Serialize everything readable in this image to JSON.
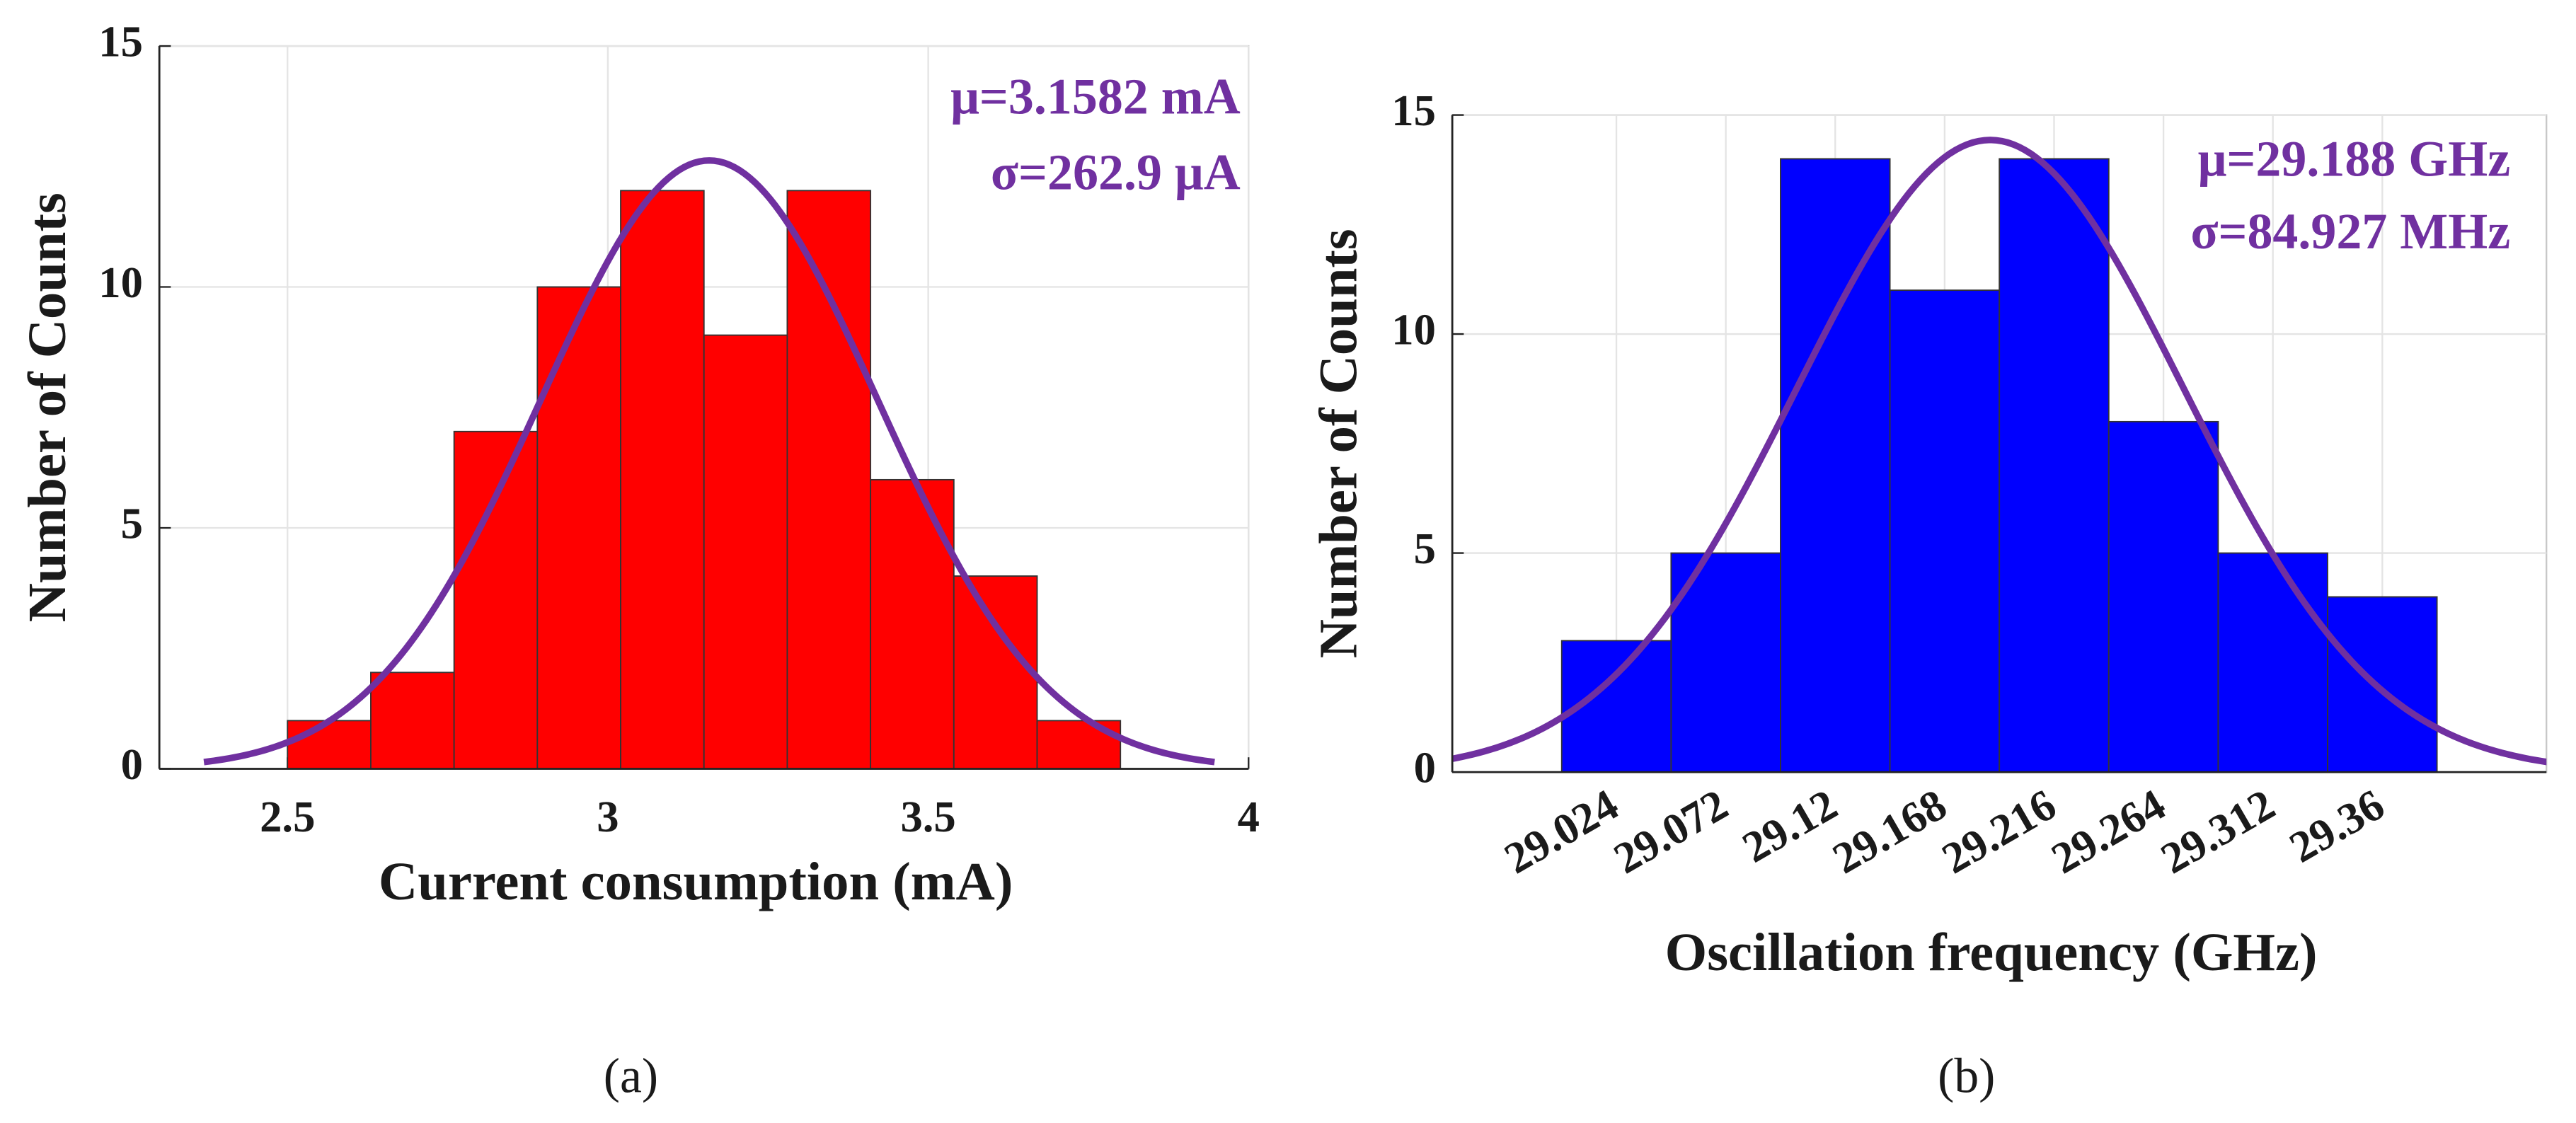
{
  "chart_data": [
    {
      "type": "histogram",
      "caption": "(a)",
      "xlabel": "Current consumption (mA)",
      "ylabel": "Number of Counts",
      "bins": [
        2.5,
        2.63,
        2.76,
        2.89,
        3.02,
        3.15,
        3.28,
        3.41,
        3.54,
        3.67,
        3.8
      ],
      "counts": [
        1,
        2,
        7,
        10,
        12,
        9,
        12,
        6,
        4,
        1
      ],
      "color": "#ff0000",
      "xlim": [
        2.3,
        4.0
      ],
      "xticks": [
        2.5,
        3,
        3.5,
        4
      ],
      "ylim": [
        0,
        15
      ],
      "yticks": [
        0,
        5,
        10,
        15
      ],
      "grid": true,
      "annotations": [
        "μ=3.1582 mA",
        "σ=262.9 μA"
      ],
      "fit": {
        "mu": 3.1582,
        "sigma": 0.2629,
        "color": "#7030a0"
      }
    },
    {
      "type": "histogram",
      "caption": "(b)",
      "xlabel": "Oscillation frequency (GHz)",
      "ylabel": "Number of Counts",
      "bins": [
        29.0,
        29.048,
        29.096,
        29.144,
        29.192,
        29.24,
        29.288,
        29.336,
        29.384
      ],
      "counts": [
        3,
        5,
        14,
        11,
        14,
        8,
        5,
        4
      ],
      "color": "#0000ff",
      "xlim": [
        28.952,
        29.432
      ],
      "xticks": [
        29.024,
        29.072,
        29.12,
        29.168,
        29.216,
        29.264,
        29.312,
        29.36
      ],
      "xtick_rotation": -30,
      "ylim": [
        0,
        15
      ],
      "yticks": [
        0,
        5,
        10,
        15
      ],
      "grid": true,
      "annotations": [
        "μ=29.188 GHz",
        "σ=84.927 MHz"
      ],
      "fit": {
        "mu": 29.188,
        "sigma": 0.084927,
        "color": "#7030a0"
      }
    }
  ]
}
